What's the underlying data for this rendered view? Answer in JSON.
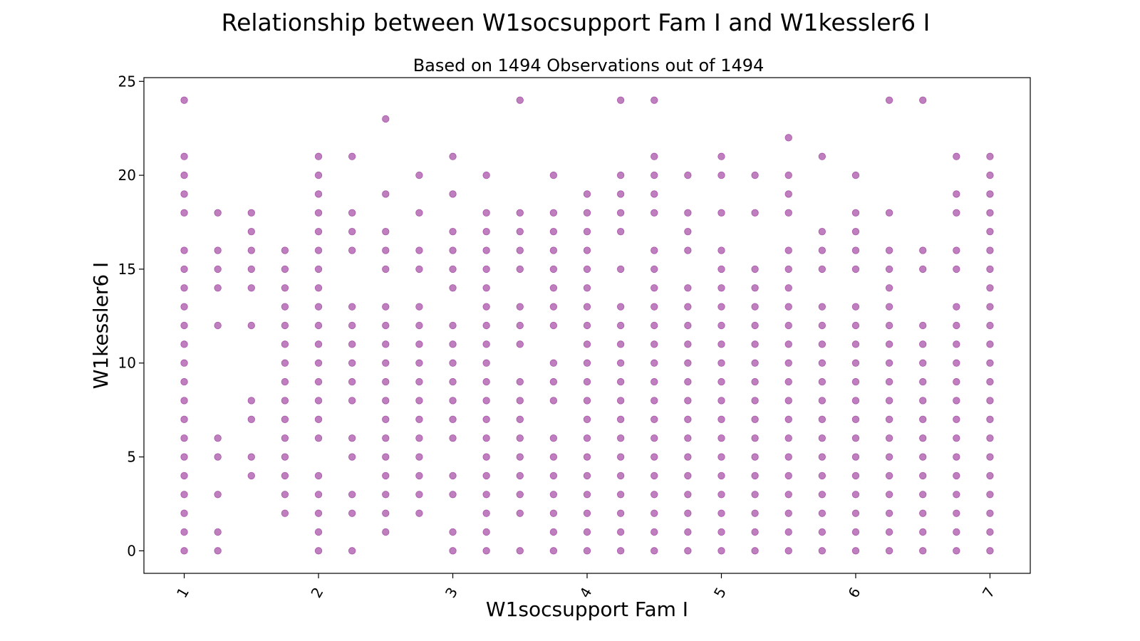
{
  "chart_data": {
    "type": "scatter",
    "title": "Relationship between W1socsupport Fam I and W1kessler6 I",
    "subtitle": "Based on 1494 Observations out of 1494",
    "xlabel": "W1socsupport Fam I",
    "ylabel": "W1kessler6 I",
    "xlim": [
      0.7,
      7.3
    ],
    "ylim": [
      -1.2,
      25.2
    ],
    "xticks": [
      1,
      2,
      3,
      4,
      5,
      6,
      7
    ],
    "yticks": [
      0,
      5,
      10,
      15,
      20,
      25
    ],
    "x_tick_rotation": 60,
    "grid": false,
    "marker_color": "#800080",
    "marker_alpha": 0.5,
    "columns": [
      {
        "x": 1.0,
        "y": [
          24,
          21,
          20,
          19,
          18,
          16,
          15,
          14,
          13,
          12,
          11,
          10,
          9,
          8,
          7,
          6,
          5,
          4,
          3,
          2,
          1,
          0
        ]
      },
      {
        "x": 1.25,
        "y": [
          18,
          16,
          15,
          14,
          12,
          6,
          5,
          3,
          1,
          0
        ]
      },
      {
        "x": 1.5,
        "y": [
          18,
          17,
          16,
          15,
          14,
          12,
          8,
          7,
          5,
          4
        ]
      },
      {
        "x": 1.75,
        "y": [
          16,
          15,
          14,
          13,
          12,
          11,
          10,
          9,
          8,
          7,
          6,
          5,
          4,
          3,
          2
        ]
      },
      {
        "x": 2.0,
        "y": [
          21,
          20,
          19,
          18,
          17,
          16,
          15,
          14,
          13,
          12,
          11,
          10,
          9,
          8,
          7,
          6,
          4,
          3,
          2,
          1,
          0
        ]
      },
      {
        "x": 2.25,
        "y": [
          21,
          18,
          17,
          16,
          13,
          12,
          11,
          10,
          9,
          8,
          6,
          5,
          3,
          2,
          0
        ]
      },
      {
        "x": 2.5,
        "y": [
          23,
          19,
          17,
          16,
          15,
          13,
          12,
          11,
          10,
          9,
          8,
          7,
          6,
          5,
          4,
          3,
          2,
          1
        ]
      },
      {
        "x": 2.75,
        "y": [
          20,
          18,
          16,
          15,
          13,
          12,
          11,
          10,
          9,
          8,
          7,
          6,
          5,
          4,
          3,
          2
        ]
      },
      {
        "x": 3.0,
        "y": [
          21,
          19,
          17,
          16,
          15,
          14,
          12,
          11,
          10,
          9,
          8,
          7,
          6,
          4,
          3,
          1,
          0
        ]
      },
      {
        "x": 3.25,
        "y": [
          20,
          18,
          17,
          16,
          15,
          14,
          13,
          12,
          11,
          10,
          9,
          8,
          7,
          6,
          5,
          4,
          3,
          2,
          1,
          0
        ]
      },
      {
        "x": 3.5,
        "y": [
          24,
          18,
          17,
          16,
          15,
          13,
          12,
          11,
          9,
          8,
          7,
          6,
          5,
          4,
          3,
          2,
          0
        ]
      },
      {
        "x": 3.75,
        "y": [
          20,
          18,
          17,
          16,
          15,
          14,
          13,
          12,
          10,
          9,
          8,
          6,
          5,
          4,
          3,
          2,
          1,
          0
        ]
      },
      {
        "x": 4.0,
        "y": [
          19,
          18,
          17,
          16,
          15,
          14,
          13,
          12,
          11,
          10,
          9,
          8,
          7,
          6,
          5,
          4,
          3,
          2,
          1,
          0
        ]
      },
      {
        "x": 4.25,
        "y": [
          24,
          20,
          19,
          18,
          17,
          15,
          13,
          12,
          11,
          10,
          9,
          8,
          7,
          6,
          5,
          4,
          3,
          2,
          1,
          0
        ]
      },
      {
        "x": 4.5,
        "y": [
          24,
          21,
          20,
          19,
          18,
          16,
          15,
          14,
          13,
          12,
          11,
          10,
          9,
          8,
          7,
          6,
          5,
          4,
          3,
          2,
          1,
          0
        ]
      },
      {
        "x": 4.75,
        "y": [
          20,
          18,
          17,
          16,
          14,
          13,
          12,
          11,
          10,
          9,
          8,
          7,
          6,
          5,
          4,
          3,
          2,
          1,
          0
        ]
      },
      {
        "x": 5.0,
        "y": [
          21,
          20,
          18,
          16,
          15,
          14,
          13,
          12,
          11,
          10,
          9,
          8,
          7,
          6,
          5,
          4,
          3,
          2,
          1,
          0
        ]
      },
      {
        "x": 5.25,
        "y": [
          20,
          18,
          15,
          14,
          13,
          12,
          11,
          10,
          9,
          8,
          7,
          6,
          5,
          4,
          3,
          2,
          1,
          0
        ]
      },
      {
        "x": 5.5,
        "y": [
          22,
          20,
          19,
          18,
          16,
          15,
          14,
          13,
          12,
          11,
          10,
          9,
          8,
          7,
          6,
          5,
          4,
          3,
          2,
          1,
          0
        ]
      },
      {
        "x": 5.75,
        "y": [
          21,
          17,
          16,
          15,
          13,
          12,
          11,
          10,
          9,
          8,
          7,
          6,
          5,
          4,
          3,
          2,
          1,
          0
        ]
      },
      {
        "x": 6.0,
        "y": [
          20,
          18,
          17,
          16,
          15,
          13,
          12,
          11,
          10,
          9,
          8,
          7,
          6,
          5,
          4,
          3,
          2,
          1,
          0
        ]
      },
      {
        "x": 6.25,
        "y": [
          24,
          18,
          16,
          15,
          14,
          13,
          12,
          11,
          10,
          9,
          8,
          7,
          6,
          5,
          4,
          3,
          2,
          1,
          0
        ]
      },
      {
        "x": 6.5,
        "y": [
          24,
          16,
          15,
          12,
          11,
          10,
          9,
          8,
          7,
          6,
          5,
          4,
          3,
          2,
          1,
          0
        ]
      },
      {
        "x": 6.75,
        "y": [
          21,
          19,
          18,
          16,
          15,
          13,
          12,
          11,
          10,
          9,
          8,
          7,
          6,
          5,
          4,
          3,
          2,
          1,
          0
        ]
      },
      {
        "x": 7.0,
        "y": [
          21,
          20,
          19,
          18,
          17,
          16,
          15,
          14,
          13,
          12,
          11,
          10,
          9,
          8,
          7,
          6,
          5,
          4,
          3,
          2,
          1,
          0
        ]
      }
    ]
  }
}
